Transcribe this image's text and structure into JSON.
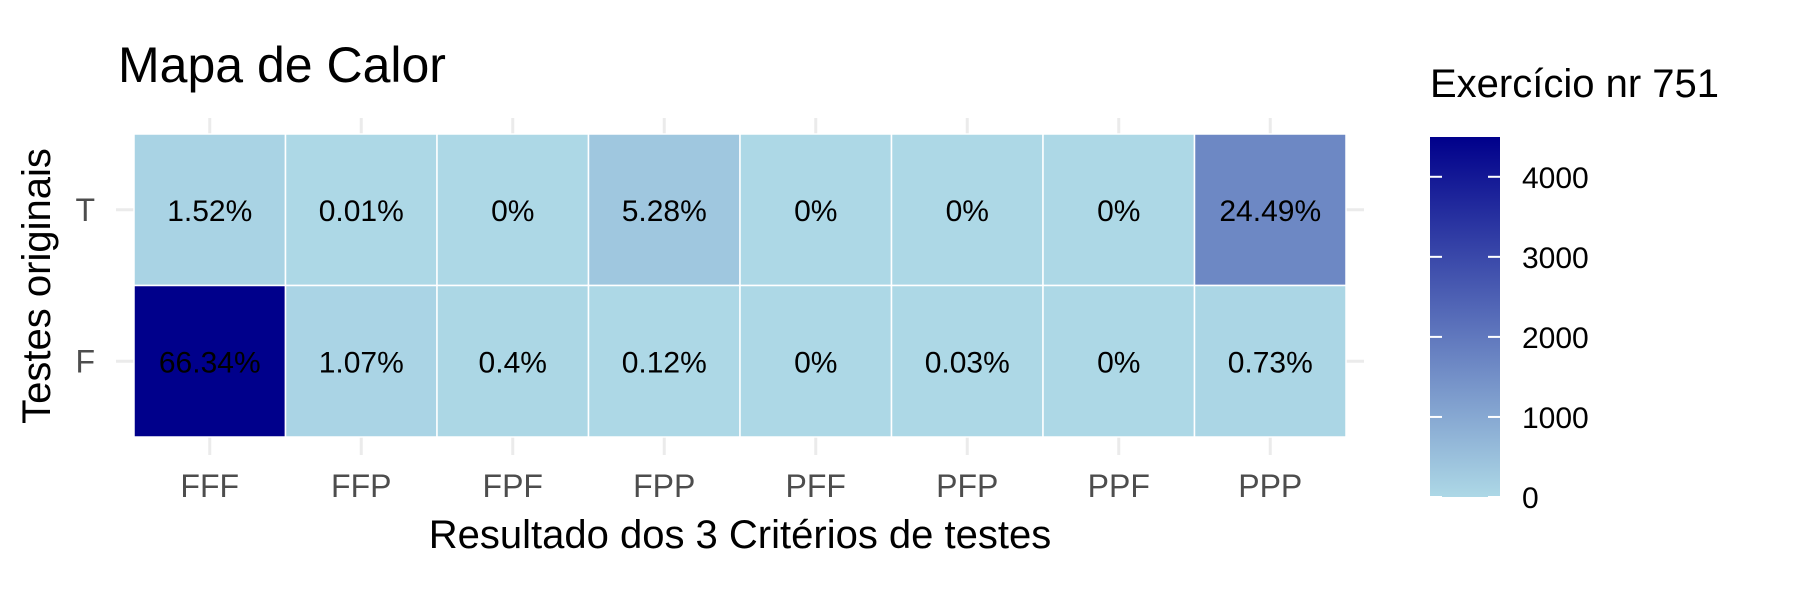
{
  "chart_data": {
    "type": "heatmap",
    "title": "Mapa de Calor",
    "xlabel": "Resultado dos 3 Critérios de testes",
    "ylabel": "Testes originais",
    "x_categories": [
      "FFF",
      "FFP",
      "FPF",
      "FPP",
      "PFF",
      "PFP",
      "PPF",
      "PPP"
    ],
    "y_categories": [
      "T",
      "F"
    ],
    "cells": [
      {
        "x": "FFF",
        "y": "T",
        "label": "1.52%",
        "value": 103
      },
      {
        "x": "FFP",
        "y": "T",
        "label": "0.01%",
        "value": 1
      },
      {
        "x": "FPF",
        "y": "T",
        "label": "0%",
        "value": 0
      },
      {
        "x": "FPP",
        "y": "T",
        "label": "5.28%",
        "value": 358
      },
      {
        "x": "PFF",
        "y": "T",
        "label": "0%",
        "value": 0
      },
      {
        "x": "PFP",
        "y": "T",
        "label": "0%",
        "value": 0
      },
      {
        "x": "PPF",
        "y": "T",
        "label": "0%",
        "value": 0
      },
      {
        "x": "PPP",
        "y": "T",
        "label": "24.49%",
        "value": 1660
      },
      {
        "x": "FFF",
        "y": "F",
        "label": "66.34%",
        "value": 4497
      },
      {
        "x": "FFP",
        "y": "F",
        "label": "1.07%",
        "value": 73
      },
      {
        "x": "FPF",
        "y": "F",
        "label": "0.4%",
        "value": 27
      },
      {
        "x": "FPP",
        "y": "F",
        "label": "0.12%",
        "value": 8
      },
      {
        "x": "PFF",
        "y": "F",
        "label": "0%",
        "value": 0
      },
      {
        "x": "PFP",
        "y": "F",
        "label": "0.03%",
        "value": 2
      },
      {
        "x": "PPF",
        "y": "F",
        "label": "0%",
        "value": 0
      },
      {
        "x": "PPP",
        "y": "F",
        "label": "0.73%",
        "value": 49
      }
    ],
    "legend": {
      "title": "Exercício nr 751",
      "ticks": [
        0,
        1000,
        2000,
        3000,
        4000
      ],
      "range": [
        0,
        4497
      ],
      "color_low": "#add8e6",
      "color_high": "#00008b"
    },
    "grid": true
  }
}
